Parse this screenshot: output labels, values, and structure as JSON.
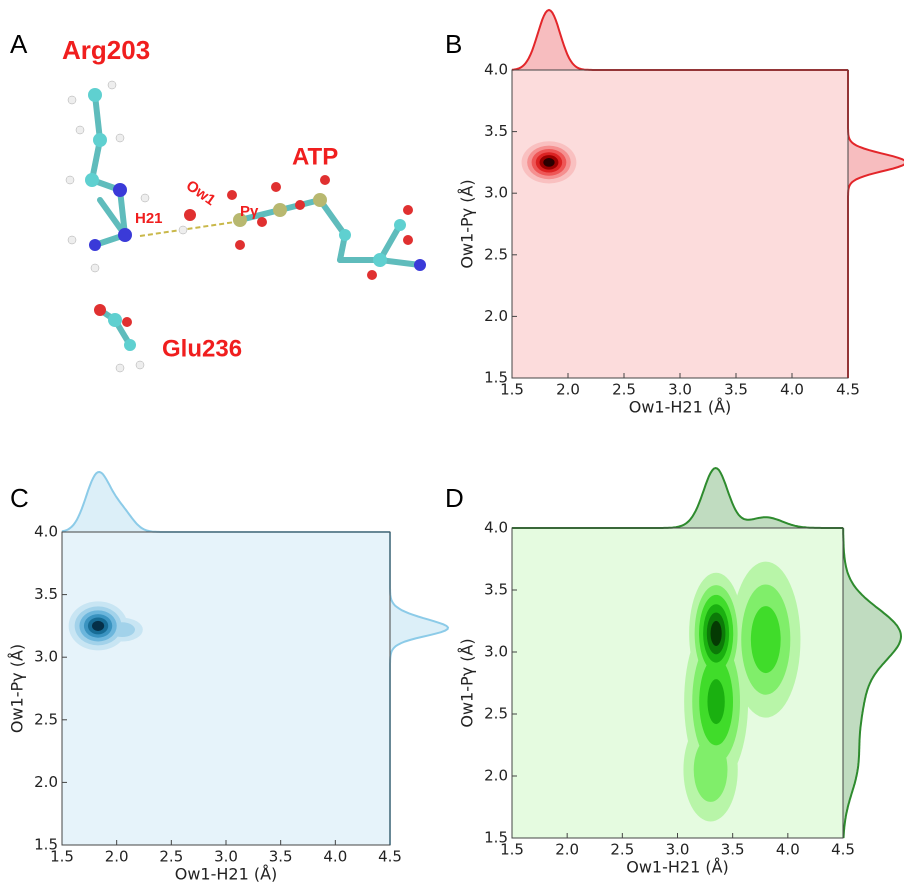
{
  "panel_a": {
    "label": "A",
    "labels": {
      "arg": "Arg203",
      "atp": "ATP",
      "glu": "Glu236",
      "h21": "H21",
      "ow1": "Ow1",
      "pg": "Pγ"
    }
  },
  "chart_data": [
    {
      "type": "kde",
      "panel": "B",
      "xlabel": "Ow1-H21 (Å)",
      "ylabel": "Ow1-Pγ (Å)",
      "xlim": [
        1.5,
        4.5
      ],
      "ylim": [
        1.5,
        4.0
      ],
      "xticks": [
        1.5,
        {
          "value": 2,
          "label": "2.0"
        },
        2.5,
        {
          "value": 3,
          "label": "3.0"
        },
        3.5,
        {
          "value": 4,
          "label": "4.0"
        },
        4.5
      ],
      "yticks": [
        1.5,
        {
          "value": 2,
          "label": "2.0"
        },
        2.5,
        {
          "value": 3,
          "label": "3.0"
        },
        3.5,
        {
          "value": 4,
          "label": "4.0"
        }
      ],
      "color": "#e3262a",
      "background": "#fcdcdc",
      "contour_colors": [
        "#f9c0c0",
        "#f59090",
        "#ee5656",
        "#dc2222",
        "#9a0000",
        "#2a0000"
      ],
      "components": [
        {
          "x": 1.83,
          "y": 3.25,
          "sx": 0.1,
          "sy": 0.07,
          "w": 1
        }
      ]
    },
    {
      "type": "kde",
      "panel": "C",
      "xlabel": "Ow1-H21 (Å)",
      "ylabel": "Ow1-Pγ (Å)",
      "xlim": [
        1.5,
        4.5
      ],
      "ylim": [
        1.5,
        4.0
      ],
      "xticks": [
        1.5,
        {
          "value": 2,
          "label": "2.0"
        },
        2.5,
        {
          "value": 3,
          "label": "3.0"
        },
        3.5,
        {
          "value": 4,
          "label": "4.0"
        },
        4.5
      ],
      "yticks": [
        1.5,
        {
          "value": 2,
          "label": "2.0"
        },
        2.5,
        {
          "value": 3,
          "label": "3.0"
        },
        3.5,
        {
          "value": 4,
          "label": "4.0"
        }
      ],
      "color": "#8ccbe8",
      "background": "#e6f3fa",
      "contour_colors": [
        "#c8e5f3",
        "#a2d2ea",
        "#6cb6dc",
        "#3a93c0",
        "#176c95",
        "#053048"
      ],
      "components": [
        {
          "x": 1.83,
          "y": 3.25,
          "sx": 0.11,
          "sy": 0.08,
          "w": 1
        },
        {
          "x": 2.05,
          "y": 3.22,
          "sx": 0.1,
          "sy": 0.05,
          "w": 0.3
        }
      ]
    },
    {
      "type": "kde",
      "panel": "D",
      "xlabel": "Ow1-H21 (Å)",
      "ylabel": "Ow1-Pγ (Å)",
      "xlim": [
        1.5,
        4.5
      ],
      "ylim": [
        1.5,
        4.0
      ],
      "xticks": [
        1.5,
        {
          "value": 2,
          "label": "2.0"
        },
        2.5,
        {
          "value": 3,
          "label": "3.0"
        },
        3.5,
        {
          "value": 4,
          "label": "4.0"
        },
        4.5
      ],
      "yticks": [
        1.5,
        {
          "value": 2,
          "label": "2.0"
        },
        2.5,
        {
          "value": 3,
          "label": "3.0"
        },
        3.5,
        {
          "value": 4,
          "label": "4.0"
        }
      ],
      "color": "#2e8b2e",
      "background": "#e5fbe0",
      "contour_colors": [
        "#b8f5a8",
        "#80ee6a",
        "#40dc2a",
        "#1ab010",
        "#0c7a08",
        "#053a03"
      ],
      "components": [
        {
          "x": 3.35,
          "y": 3.15,
          "sx": 0.1,
          "sy": 0.2,
          "w": 1
        },
        {
          "x": 3.35,
          "y": 2.6,
          "sx": 0.13,
          "sy": 0.3,
          "w": 0.6
        },
        {
          "x": 3.8,
          "y": 3.1,
          "sx": 0.15,
          "sy": 0.3,
          "w": 0.45
        },
        {
          "x": 3.3,
          "y": 2.05,
          "sx": 0.13,
          "sy": 0.22,
          "w": 0.3
        }
      ]
    }
  ]
}
